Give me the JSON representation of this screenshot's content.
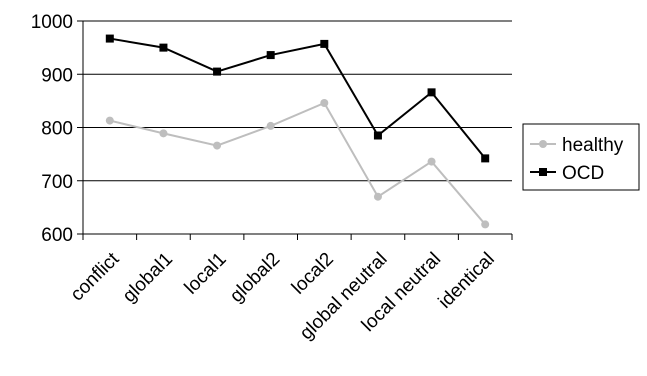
{
  "chart_data": {
    "type": "line",
    "title": "",
    "xlabel": "",
    "ylabel": "",
    "categories": [
      "conflict",
      "global1",
      "local1",
      "global2",
      "local2",
      "global neutral",
      "local neutral",
      "identical"
    ],
    "series": [
      {
        "name": "healthy",
        "values": [
          813,
          789,
          766,
          803,
          846,
          670,
          736,
          618
        ],
        "color": "#bebebe",
        "marker": "circle"
      },
      {
        "name": "OCD",
        "values": [
          967,
          950,
          905,
          936,
          957,
          785,
          866,
          742
        ],
        "color": "#000000",
        "marker": "square"
      }
    ],
    "ylim": [
      600,
      1000
    ],
    "yticks": [
      600,
      700,
      800,
      900,
      1000
    ],
    "grid": "horizontal",
    "legend": "right"
  }
}
